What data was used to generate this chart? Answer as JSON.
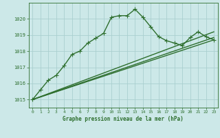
{
  "title": "Graphe pression niveau de la mer (hPa)",
  "background_color": "#cce8e8",
  "grid_color": "#aacfcf",
  "line_color": "#2d6e2d",
  "xlim": [
    -0.5,
    23.5
  ],
  "ylim": [
    1014.5,
    1021.0
  ],
  "yticks": [
    1015,
    1016,
    1017,
    1018,
    1019,
    1020
  ],
  "xticks": [
    0,
    1,
    2,
    3,
    4,
    5,
    6,
    7,
    8,
    9,
    10,
    11,
    12,
    13,
    14,
    15,
    16,
    17,
    18,
    19,
    20,
    21,
    22,
    23
  ],
  "main_series": {
    "x": [
      0,
      1,
      2,
      3,
      4,
      5,
      6,
      7,
      8,
      9,
      10,
      11,
      12,
      13,
      14,
      15,
      16,
      17,
      18,
      19,
      20,
      21,
      22,
      23
    ],
    "y": [
      1015.0,
      1015.6,
      1016.2,
      1016.5,
      1017.1,
      1017.8,
      1018.0,
      1018.5,
      1018.8,
      1019.1,
      1020.1,
      1020.2,
      1020.2,
      1020.6,
      1020.1,
      1019.5,
      1018.9,
      1018.65,
      1018.5,
      1018.35,
      1018.85,
      1019.2,
      1018.9,
      1018.7
    ]
  },
  "ref_lines": [
    {
      "x": [
        0,
        23
      ],
      "y": [
        1015.0,
        1019.2
      ]
    },
    {
      "x": [
        0,
        23
      ],
      "y": [
        1015.0,
        1018.85
      ]
    },
    {
      "x": [
        0,
        23
      ],
      "y": [
        1015.0,
        1018.7
      ]
    }
  ],
  "marker": "+",
  "markersize": 4,
  "linewidth": 1.0
}
